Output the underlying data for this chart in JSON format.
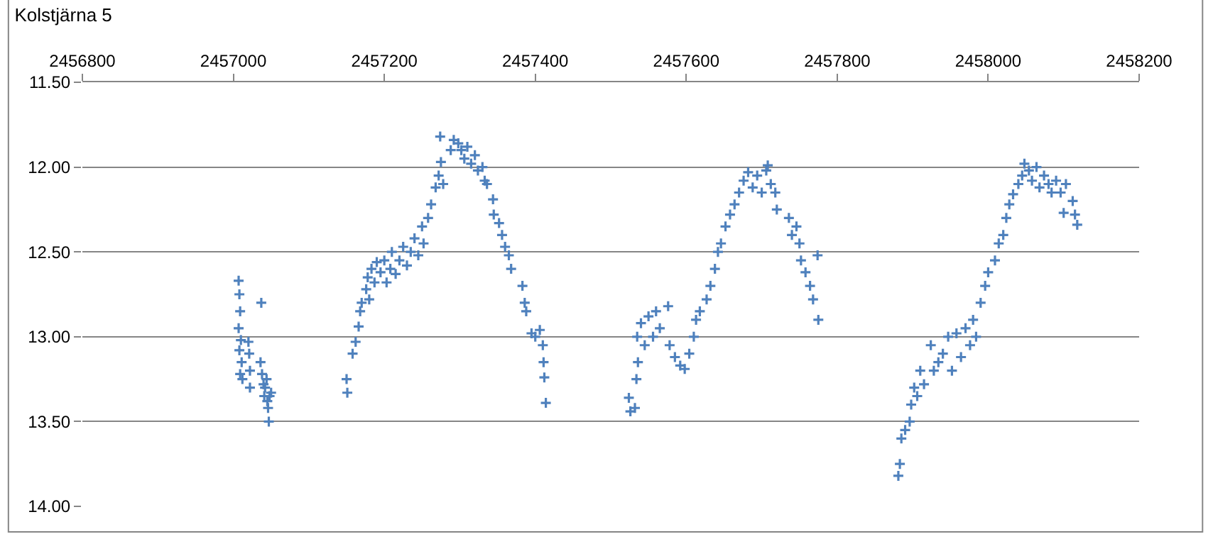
{
  "chart_data": {
    "type": "scatter",
    "title": "Kolstjärna 5",
    "marker": "cross",
    "grid": "y",
    "xlim": [
      2456800,
      2458200
    ],
    "xticks": [
      2456800,
      2457000,
      2457200,
      2457400,
      2457600,
      2457800,
      2458000,
      2458200
    ],
    "ylim": [
      14.0,
      11.5
    ],
    "yticks": [
      {
        "value": 11.5,
        "label": "11.50"
      },
      {
        "value": 12.0,
        "label": "12.00"
      },
      {
        "value": 12.5,
        "label": "12.50"
      },
      {
        "value": 13.0,
        "label": "13.00"
      },
      {
        "value": 13.5,
        "label": "13.50"
      },
      {
        "value": 14.0,
        "label": "14.00"
      }
    ],
    "series": [
      {
        "color": "#4f81bd",
        "x": [
          2457007,
          2457008,
          2457009,
          2457007,
          2457010,
          2457008,
          2457011,
          2457009,
          2457012,
          2457020,
          2457021,
          2457022,
          2457022,
          2457037,
          2457036,
          2457038,
          2457040,
          2457042,
          2457044,
          2457041,
          2457045,
          2457046,
          2457048,
          2457047,
          2457050,
          2457150,
          2457151,
          2457158,
          2457162,
          2457166,
          2457168,
          2457170,
          2457176,
          2457178,
          2457180,
          2457183,
          2457187,
          2457190,
          2457195,
          2457200,
          2457203,
          2457208,
          2457210,
          2457215,
          2457220,
          2457225,
          2457230,
          2457235,
          2457240,
          2457245,
          2457250,
          2457252,
          2457258,
          2457262,
          2457268,
          2457272,
          2457275,
          2457278,
          2457274,
          2457288,
          2457292,
          2457298,
          2457302,
          2457306,
          2457310,
          2457315,
          2457320,
          2457324,
          2457330,
          2457333,
          2457336,
          2457344,
          2457345,
          2457352,
          2457356,
          2457360,
          2457365,
          2457368,
          2457383,
          2457386,
          2457388,
          2457395,
          2457400,
          2457406,
          2457410,
          2457411,
          2457412,
          2457414,
          2457524,
          2457532,
          2457526,
          2457534,
          2457536,
          2457535,
          2457540,
          2457545,
          2457550,
          2457556,
          2457560,
          2457565,
          2457576,
          2457578,
          2457585,
          2457592,
          2457598,
          2457604,
          2457610,
          2457613,
          2457618,
          2457627,
          2457632,
          2457638,
          2457642,
          2457646,
          2457652,
          2457658,
          2457664,
          2457670,
          2457676,
          2457682,
          2457688,
          2457694,
          2457700,
          2457706,
          2457708,
          2457712,
          2457718,
          2457720,
          2457736,
          2457740,
          2457746,
          2457750,
          2457752,
          2457758,
          2457764,
          2457768,
          2457774,
          2457775,
          2457881,
          2457883,
          2457885,
          2457890,
          2457896,
          2457898,
          2457902,
          2457906,
          2457910,
          2457915,
          2457924,
          2457928,
          2457934,
          2457940,
          2457947,
          2457952,
          2457958,
          2457964,
          2457970,
          2457976,
          2457980,
          2457984,
          2457990,
          2457996,
          2458000,
          2458009,
          2458014,
          2458020,
          2458024,
          2458028,
          2458033,
          2458040,
          2458045,
          2458048,
          2458054,
          2458058,
          2458064,
          2458068,
          2458074,
          2458080,
          2458084,
          2458090,
          2458096,
          2458100,
          2458103,
          2458112,
          2458115,
          2458118
        ],
        "values": [
          12.67,
          12.75,
          12.85,
          12.95,
          13.02,
          13.08,
          13.15,
          13.22,
          13.25,
          13.03,
          13.1,
          13.2,
          13.3,
          12.8,
          13.15,
          13.22,
          13.28,
          13.3,
          13.25,
          13.35,
          13.38,
          13.42,
          13.35,
          13.5,
          13.33,
          13.25,
          13.33,
          13.1,
          13.03,
          12.94,
          12.85,
          12.8,
          12.72,
          12.65,
          12.78,
          12.6,
          12.68,
          12.56,
          12.62,
          12.55,
          12.68,
          12.6,
          12.5,
          12.63,
          12.55,
          12.47,
          12.58,
          12.5,
          12.42,
          12.52,
          12.35,
          12.45,
          12.3,
          12.22,
          12.12,
          12.05,
          11.97,
          12.1,
          11.82,
          11.9,
          11.84,
          11.86,
          11.9,
          11.95,
          11.88,
          11.98,
          11.93,
          12.02,
          12.0,
          12.08,
          12.1,
          12.19,
          12.28,
          12.33,
          12.4,
          12.47,
          12.52,
          12.6,
          12.7,
          12.8,
          12.85,
          12.98,
          13.0,
          12.96,
          13.05,
          13.15,
          13.24,
          13.39,
          13.36,
          13.42,
          13.44,
          13.25,
          13.15,
          13.0,
          12.92,
          13.05,
          12.88,
          13.0,
          12.85,
          12.95,
          12.82,
          13.05,
          13.12,
          13.17,
          13.19,
          13.1,
          13.0,
          12.9,
          12.85,
          12.78,
          12.7,
          12.6,
          12.5,
          12.45,
          12.35,
          12.28,
          12.22,
          12.15,
          12.08,
          12.03,
          12.12,
          12.05,
          12.15,
          12.02,
          11.99,
          12.1,
          12.15,
          12.25,
          12.3,
          12.4,
          12.35,
          12.45,
          12.55,
          12.62,
          12.7,
          12.78,
          12.52,
          12.9,
          13.82,
          13.75,
          13.6,
          13.55,
          13.5,
          13.4,
          13.3,
          13.35,
          13.2,
          13.28,
          13.05,
          13.2,
          13.15,
          13.1,
          13.0,
          13.2,
          12.98,
          13.12,
          12.95,
          13.05,
          12.9,
          13.0,
          12.8,
          12.7,
          12.62,
          12.55,
          12.45,
          12.4,
          12.3,
          12.22,
          12.16,
          12.1,
          12.05,
          11.98,
          12.02,
          12.08,
          12.0,
          12.12,
          12.05,
          12.1,
          12.15,
          12.08,
          12.15,
          12.27,
          12.1,
          12.2,
          12.28,
          12.34
        ]
      }
    ]
  }
}
